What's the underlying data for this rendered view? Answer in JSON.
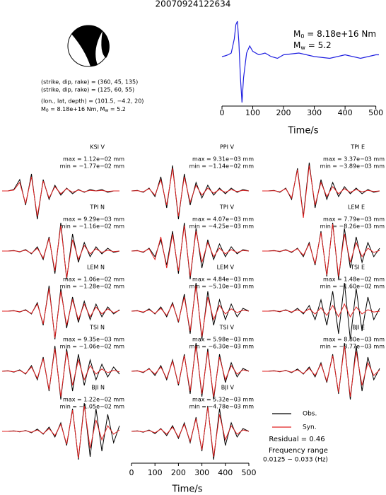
{
  "header": {
    "title": "20070924122634"
  },
  "annotations": {
    "line1": "(strike, dip, rake) = (360, 45, 135)",
    "line2": "(strike, dip, rake) = (125, 60, 55)",
    "line3": "(lon., lat, depth) = (101.5, −4.2, 20)",
    "line4": "M",
    "line4_sub": "0",
    "line4_rest": " = 8.18e+16 Nm, M",
    "line4_sub2": "w",
    "line4_rest2": " = 5.2"
  },
  "chart_data": [
    {
      "type": "line",
      "color": "#1f1fe0",
      "m0": "M",
      "m0_sub": "0",
      "m0_rest": " = 8.18e+16 Nm",
      "mw": "M",
      "mw_sub": "w",
      "mw_rest": " = 5.2",
      "x": [
        0,
        10,
        20,
        30,
        40,
        45,
        50,
        55,
        60,
        65,
        70,
        80,
        90,
        100,
        120,
        140,
        160,
        180,
        200,
        250,
        300,
        350,
        400,
        450,
        500,
        510
      ],
      "values": [
        0,
        0.02,
        0.05,
        0.1,
        0.5,
        0.9,
        1.0,
        0.4,
        -0.6,
        -1.3,
        -0.6,
        0.1,
        0.3,
        0.15,
        0.05,
        0.1,
        0.0,
        -0.05,
        0.05,
        0.1,
        0.0,
        -0.05,
        0.05,
        -0.05,
        0.05,
        0.05
      ],
      "xlim": [
        0,
        510
      ],
      "ylim": [
        -1.3,
        1.0
      ],
      "xticks": [
        0,
        100,
        200,
        300,
        400,
        500
      ],
      "xlabel": "Time/s"
    },
    {
      "type": "waveform",
      "xlim": [
        0,
        520
      ],
      "ylim": [
        -1,
        1
      ],
      "xticks": [
        0,
        100,
        200,
        300,
        400,
        500
      ],
      "xlabel": "Time/s",
      "x": [
        0,
        25,
        50,
        75,
        100,
        125,
        150,
        175,
        200,
        225,
        250,
        275,
        300,
        325,
        350,
        375,
        400,
        425,
        450,
        475,
        500
      ],
      "series": [
        {
          "name": "Obs.",
          "color": "#000000"
        },
        {
          "name": "Syn.",
          "color": "#e02020"
        }
      ],
      "residual": "Residual = 0.46",
      "freq_title": "Frequency range",
      "freq": "0.0125 − 0.033 (Hz)",
      "panels": [
        {
          "title": "KSI V",
          "max": "max = 1.12e−02 mm",
          "min": "min = −1.77e−02 mm",
          "obs": [
            0,
            0,
            0.05,
            0.4,
            -0.5,
            0.6,
            -1.0,
            0.4,
            -0.3,
            0.2,
            -0.15,
            0.1,
            -0.1,
            0.05,
            -0.05,
            0.05,
            0,
            0.05,
            -0.05,
            0,
            0
          ],
          "syn": [
            0,
            0,
            0.03,
            0.3,
            -0.45,
            0.5,
            -0.9,
            0.35,
            -0.25,
            0.15,
            -0.1,
            0.08,
            -0.05,
            0.03,
            -0.03,
            0.02,
            0,
            0.02,
            -0.02,
            0,
            0
          ]
        },
        {
          "title": "PPI V",
          "max": "max = 9.31e−03 mm",
          "min": "min = −1.14e−02 mm",
          "obs": [
            0,
            0.02,
            -0.05,
            0.1,
            -0.2,
            0.5,
            -0.6,
            0.9,
            -1.0,
            0.6,
            -0.5,
            0.3,
            -0.25,
            0.2,
            -0.15,
            0.1,
            -0.1,
            0.1,
            -0.05,
            0.05,
            0
          ],
          "syn": [
            0,
            0.01,
            -0.03,
            0.08,
            -0.15,
            0.4,
            -0.5,
            0.8,
            -0.9,
            0.5,
            -0.4,
            0.2,
            -0.15,
            0.1,
            -0.08,
            0.05,
            -0.05,
            0.05,
            -0.02,
            0.02,
            0
          ]
        },
        {
          "title": "TPI E",
          "max": "max = 3.37e−03 mm",
          "min": "min = −3.89e−03 mm",
          "obs": [
            0,
            0,
            0.02,
            -0.05,
            0.1,
            -0.3,
            0.8,
            -0.9,
            1.0,
            -0.6,
            0.4,
            -0.3,
            0.3,
            -0.2,
            0.15,
            -0.1,
            0.1,
            -0.1,
            0.05,
            -0.05,
            0
          ],
          "syn": [
            0,
            0,
            0.01,
            -0.03,
            0.08,
            -0.25,
            0.75,
            -0.95,
            0.9,
            -0.5,
            0.3,
            -0.2,
            0.15,
            -0.1,
            0.08,
            -0.05,
            0.05,
            -0.03,
            0.02,
            -0.02,
            0
          ]
        },
        {
          "title": "TPI N",
          "max": "max = 9.29e−03 mm",
          "min": "min = −1.16e−02 mm",
          "obs": [
            0,
            0,
            0.02,
            -0.03,
            0.05,
            -0.1,
            0.15,
            -0.3,
            0.5,
            -0.8,
            1.0,
            -1.0,
            0.6,
            -0.4,
            0.3,
            -0.2,
            0.15,
            -0.1,
            0.1,
            -0.05,
            0
          ],
          "syn": [
            0,
            0,
            0.01,
            -0.02,
            0.03,
            -0.08,
            0.1,
            -0.25,
            0.45,
            -0.7,
            0.9,
            -0.95,
            0.4,
            -0.3,
            0.2,
            -0.1,
            0.08,
            -0.05,
            0.03,
            -0.02,
            0
          ]
        },
        {
          "title": "TPI V",
          "max": "max = 4.07e−03 mm",
          "min": "min = −4.25e−03 mm",
          "obs": [
            0,
            0.02,
            -0.05,
            0.1,
            -0.2,
            0.4,
            -0.5,
            0.7,
            -0.8,
            1.0,
            -1.0,
            0.8,
            -0.6,
            0.4,
            -0.3,
            0.25,
            -0.2,
            0.15,
            -0.1,
            0.05,
            0
          ],
          "syn": [
            0,
            0.01,
            -0.03,
            0.08,
            -0.3,
            0.5,
            -0.6,
            0.6,
            -0.7,
            0.9,
            -0.9,
            0.7,
            -0.4,
            0.3,
            -0.2,
            0.1,
            -0.1,
            0.05,
            -0.05,
            0.02,
            0
          ]
        },
        {
          "title": "LEM E",
          "max": "max = 7.79e−03 mm",
          "min": "min = −8.26e−03 mm",
          "obs": [
            0,
            0,
            0.02,
            -0.02,
            0.05,
            -0.05,
            0.1,
            -0.2,
            0.3,
            -0.5,
            0.7,
            -0.9,
            1.0,
            -1.0,
            0.8,
            -0.6,
            0.5,
            -0.4,
            0.3,
            -0.2,
            0.1
          ],
          "syn": [
            0,
            0,
            0.01,
            -0.01,
            0.03,
            -0.03,
            0.08,
            -0.15,
            0.25,
            -0.45,
            0.65,
            -0.85,
            0.95,
            -0.9,
            0.6,
            -0.4,
            0.3,
            -0.2,
            0.1,
            -0.05,
            0.02
          ]
        },
        {
          "title": "LEM N",
          "max": "max = 1.06e−02 mm",
          "min": "min = −1.28e−02 mm",
          "obs": [
            0,
            0,
            0.02,
            -0.03,
            0.05,
            -0.1,
            0.3,
            -0.5,
            0.9,
            -1.0,
            0.8,
            -0.6,
            0.5,
            -0.4,
            0.35,
            -0.3,
            0.25,
            -0.2,
            0.15,
            -0.1,
            0.05
          ],
          "syn": [
            0,
            0,
            0.01,
            -0.02,
            0.03,
            -0.08,
            0.25,
            -0.45,
            0.8,
            -0.95,
            0.7,
            -0.5,
            0.4,
            -0.3,
            0.25,
            -0.2,
            0.15,
            -0.1,
            0.08,
            -0.05,
            0.02
          ]
        },
        {
          "title": "LEM V",
          "max": "max = 4.84e−03 mm",
          "min": "min = −5.10e−03 mm",
          "obs": [
            0,
            0.02,
            -0.05,
            0.08,
            -0.1,
            0.15,
            -0.2,
            0.3,
            -0.4,
            0.6,
            -0.8,
            1.0,
            -1.0,
            0.7,
            -0.5,
            0.4,
            -0.3,
            0.25,
            -0.2,
            0.1,
            0
          ],
          "syn": [
            0,
            0.01,
            -0.03,
            0.05,
            -0.08,
            0.1,
            -0.15,
            0.25,
            -0.35,
            0.5,
            -0.7,
            0.9,
            -0.9,
            0.5,
            -0.3,
            0.2,
            -0.1,
            0.08,
            -0.05,
            0.03,
            0
          ]
        },
        {
          "title": "TSI E",
          "max": "max = 1.48e−02 mm",
          "min": "min = −1.60e−02 mm",
          "obs": [
            0,
            0,
            0.02,
            -0.02,
            0.05,
            -0.05,
            0.1,
            -0.1,
            0.2,
            -0.3,
            0.4,
            -0.5,
            0.7,
            -0.8,
            1.0,
            -1.0,
            0.8,
            -0.7,
            0.5,
            -0.3,
            0.1
          ],
          "syn": [
            0,
            0,
            0.01,
            -0.01,
            0.03,
            -0.03,
            0.05,
            -0.05,
            0.08,
            -0.1,
            0.12,
            -0.15,
            0.2,
            -0.2,
            0.25,
            -0.2,
            0.15,
            -0.1,
            0.05,
            -0.03,
            0
          ]
        },
        {
          "title": "TSI N",
          "max": "max = 9.35e−03 mm",
          "min": "min = −1.06e−02 mm",
          "obs": [
            0,
            0.02,
            -0.03,
            0.05,
            -0.1,
            0.2,
            -0.3,
            0.5,
            -0.7,
            0.9,
            -1.0,
            0.8,
            -0.7,
            0.6,
            -0.5,
            0.4,
            -0.3,
            0.25,
            -0.2,
            0.15,
            -0.1
          ],
          "syn": [
            0,
            0.01,
            -0.02,
            0.03,
            -0.08,
            0.15,
            -0.25,
            0.45,
            -0.65,
            0.8,
            -0.9,
            0.7,
            -0.5,
            0.4,
            -0.3,
            0.2,
            -0.1,
            0.08,
            -0.05,
            0.03,
            -0.02
          ]
        },
        {
          "title": "TSI V",
          "max": "max = 5.98e−03 mm",
          "min": "min = −6.30e−03 mm",
          "obs": [
            0,
            0.02,
            -0.05,
            0.1,
            -0.15,
            0.2,
            -0.3,
            0.4,
            -0.5,
            0.6,
            -0.8,
            1.0,
            -0.9,
            0.8,
            -1.0,
            0.6,
            -0.4,
            0.3,
            -0.2,
            0.1,
            0
          ],
          "syn": [
            0,
            0.01,
            -0.03,
            0.08,
            -0.1,
            0.15,
            -0.25,
            0.35,
            -0.45,
            0.55,
            -0.7,
            0.9,
            -0.8,
            0.7,
            -0.9,
            0.5,
            -0.3,
            0.2,
            -0.1,
            0.05,
            0
          ]
        },
        {
          "title": "BJI E",
          "max": "max = 8.80e−03 mm",
          "min": "min = −8.77e−03 mm",
          "obs": [
            0,
            0,
            0.02,
            -0.02,
            0.03,
            -0.05,
            0.08,
            -0.1,
            0.15,
            -0.2,
            0.3,
            -0.4,
            0.6,
            -0.8,
            1.0,
            -1.0,
            0.9,
            -0.7,
            0.5,
            -0.3,
            0.1
          ],
          "syn": [
            0,
            0,
            0.01,
            -0.01,
            0.02,
            -0.03,
            0.05,
            -0.08,
            0.1,
            -0.15,
            0.25,
            -0.35,
            0.55,
            -0.75,
            0.9,
            -0.9,
            0.7,
            -0.5,
            0.3,
            -0.15,
            0.05
          ]
        },
        {
          "title": "BJI N",
          "max": "max = 1.22e−02 mm",
          "min": "min = −1.05e−02 mm",
          "obs": [
            0,
            0,
            0.02,
            -0.02,
            0.03,
            -0.05,
            0.08,
            -0.1,
            0.15,
            -0.2,
            0.3,
            -0.5,
            0.8,
            -1.0,
            1.0,
            -0.9,
            0.8,
            -0.7,
            0.6,
            -0.4,
            0.2
          ],
          "syn": [
            0,
            0,
            0.01,
            -0.01,
            0.02,
            -0.03,
            0.05,
            -0.08,
            0.1,
            -0.15,
            0.25,
            -0.45,
            0.75,
            -0.95,
            0.9,
            -0.6,
            0.4,
            -0.3,
            0.2,
            -0.1,
            0.05
          ]
        },
        {
          "title": "BJI V",
          "max": "max = 5.32e−03 mm",
          "min": "min = −4.78e−03 mm",
          "obs": [
            0,
            0.02,
            -0.03,
            0.05,
            -0.08,
            0.1,
            -0.15,
            0.2,
            -0.25,
            0.3,
            -0.4,
            0.5,
            -0.7,
            0.9,
            -1.0,
            0.8,
            -0.5,
            0.3,
            -0.2,
            0.1,
            0
          ],
          "syn": [
            0,
            0.01,
            -0.02,
            0.03,
            -0.05,
            0.08,
            -0.1,
            0.15,
            -0.2,
            0.25,
            -0.35,
            0.45,
            -0.65,
            0.85,
            -0.9,
            0.6,
            -0.3,
            0.2,
            -0.1,
            0.05,
            0
          ]
        }
      ]
    }
  ]
}
